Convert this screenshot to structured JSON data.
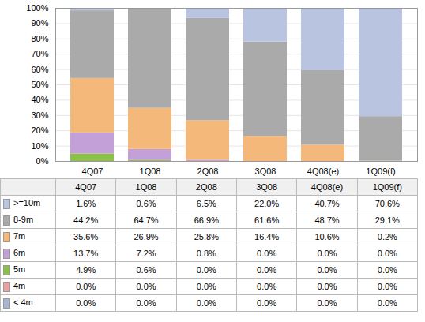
{
  "chart_data": {
    "type": "bar",
    "stacked": true,
    "grid": true,
    "categories": [
      "4Q07",
      "1Q08",
      "2Q08",
      "3Q08",
      "4Q08(e)",
      "1Q09(f)"
    ],
    "series": [
      {
        "name": "< 4m",
        "color": "#aab4d4",
        "values": [
          0.0,
          0.0,
          0.0,
          0.0,
          0.0,
          0.0
        ],
        "value_labels": [
          "0.0%",
          "0.0%",
          "0.0%",
          "0.0%",
          "0.0%",
          "0.0%"
        ]
      },
      {
        "name": "4m",
        "color": "#e8a0a0",
        "values": [
          0.0,
          0.0,
          0.0,
          0.0,
          0.0,
          0.0
        ],
        "value_labels": [
          "0.0%",
          "0.0%",
          "0.0%",
          "0.0%",
          "0.0%",
          "0.0%"
        ]
      },
      {
        "name": "5m",
        "color": "#8dc04a",
        "values": [
          4.9,
          0.6,
          0.0,
          0.0,
          0.0,
          0.0
        ],
        "value_labels": [
          "4.9%",
          "0.6%",
          "0.0%",
          "0.0%",
          "0.0%",
          "0.0%"
        ]
      },
      {
        "name": "6m",
        "color": "#c4a0d8",
        "values": [
          13.7,
          7.2,
          0.8,
          0.0,
          0.0,
          0.0
        ],
        "value_labels": [
          "13.7%",
          "7.2%",
          "0.8%",
          "0.0%",
          "0.0%",
          "0.0%"
        ]
      },
      {
        "name": "7m",
        "color": "#f4b97a",
        "values": [
          35.6,
          26.9,
          25.8,
          16.4,
          10.6,
          0.2
        ],
        "value_labels": [
          "35.6%",
          "26.9%",
          "25.8%",
          "16.4%",
          "10.6%",
          "0.2%"
        ]
      },
      {
        "name": "8-9m",
        "color": "#aaaaaa",
        "values": [
          44.2,
          64.7,
          66.9,
          61.6,
          48.7,
          29.1
        ],
        "value_labels": [
          "44.2%",
          "64.7%",
          "66.9%",
          "61.6%",
          "48.7%",
          "29.1%"
        ]
      },
      {
        "name": ">=10m",
        "color": "#b8c4e0",
        "values": [
          1.6,
          0.6,
          6.5,
          22.0,
          40.7,
          70.6
        ],
        "value_labels": [
          "1.6%",
          "0.6%",
          "6.5%",
          "22.0%",
          "40.7%",
          "70.6%"
        ]
      }
    ],
    "ylim": [
      0,
      100
    ],
    "yticks": [
      {
        "value": 0,
        "label": "0%"
      },
      {
        "value": 10,
        "label": "10%"
      },
      {
        "value": 20,
        "label": "20%"
      },
      {
        "value": 30,
        "label": "30%"
      },
      {
        "value": 40,
        "label": "40%"
      },
      {
        "value": 50,
        "label": "50%"
      },
      {
        "value": 60,
        "label": "60%"
      },
      {
        "value": 70,
        "label": "70%"
      },
      {
        "value": 80,
        "label": "80%"
      },
      {
        "value": 90,
        "label": "90%"
      },
      {
        "value": 100,
        "label": "100%"
      }
    ]
  }
}
